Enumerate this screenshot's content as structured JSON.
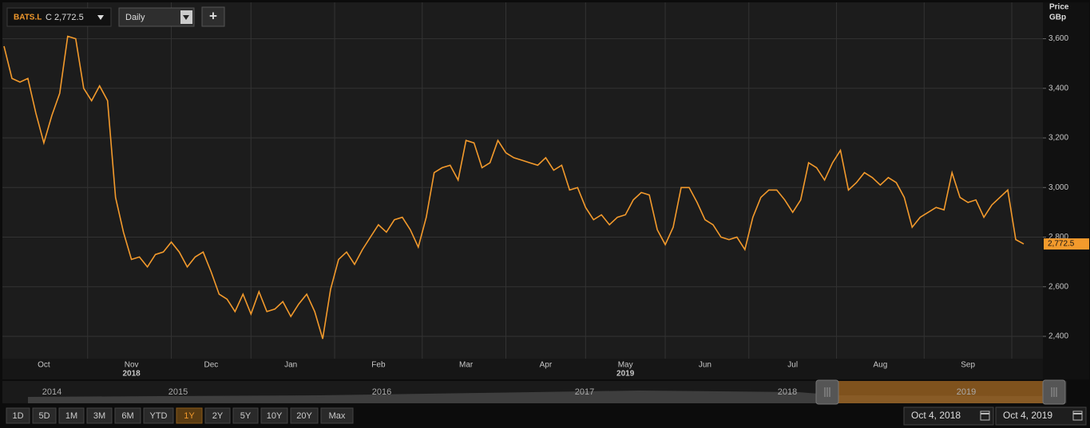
{
  "toolbar": {
    "symbol": "BATS.L",
    "quote": "C 2,772.5",
    "interval": "Daily",
    "add": "+"
  },
  "chart_data": {
    "type": "line",
    "axis_title": [
      "Price",
      "GBp"
    ],
    "categories": [
      null,
      null,
      null,
      null,
      null,
      "Oct",
      null,
      null,
      null,
      null,
      null,
      null,
      null,
      null,
      null,
      null,
      "Nov",
      null,
      null,
      null,
      null,
      null,
      null,
      null,
      null,
      null,
      "Dec",
      null,
      null,
      null,
      null,
      null,
      null,
      null,
      null,
      null,
      "Jan",
      null,
      null,
      null,
      null,
      null,
      null,
      null,
      null,
      null,
      null,
      "Feb",
      null,
      null,
      null,
      null,
      null,
      null,
      null,
      null,
      null,
      null,
      "Mar",
      null,
      null,
      null,
      null,
      null,
      null,
      null,
      null,
      null,
      "Apr",
      null,
      null,
      null,
      null,
      null,
      null,
      null,
      null,
      null,
      "May",
      null,
      null,
      null,
      null,
      null,
      null,
      null,
      null,
      null,
      "Jun",
      null,
      null,
      null,
      null,
      null,
      null,
      null,
      null,
      null,
      null,
      "Jul",
      null,
      null,
      null,
      null,
      null,
      null,
      null,
      null,
      null,
      null,
      "Aug",
      null,
      null,
      null,
      null,
      null,
      null,
      null,
      null,
      null,
      null,
      "Sep",
      null,
      null,
      null,
      null,
      null,
      null,
      null
    ],
    "category_years": [
      null,
      null,
      null,
      null,
      null,
      null,
      null,
      null,
      null,
      null,
      null,
      null,
      null,
      null,
      null,
      null,
      "2018",
      null,
      null,
      null,
      null,
      null,
      null,
      null,
      null,
      null,
      null,
      null,
      null,
      null,
      null,
      null,
      null,
      null,
      null,
      null,
      null,
      null,
      null,
      null,
      null,
      null,
      null,
      null,
      null,
      null,
      null,
      null,
      null,
      null,
      null,
      null,
      null,
      null,
      null,
      null,
      null,
      null,
      null,
      null,
      null,
      null,
      null,
      null,
      null,
      null,
      null,
      null,
      null,
      null,
      null,
      null,
      null,
      null,
      null,
      null,
      null,
      null,
      "2019",
      null,
      null,
      null,
      null,
      null,
      null,
      null,
      null,
      null,
      null,
      null,
      null,
      null,
      null,
      null,
      null,
      null,
      null,
      null,
      null,
      null,
      null,
      null,
      null,
      null,
      null,
      null,
      null,
      null,
      null,
      null,
      null,
      null,
      null,
      null,
      null,
      null,
      null,
      null,
      null,
      null,
      null,
      null,
      null,
      null,
      null,
      null,
      null,
      null,
      null,
      null,
      null,
      null,
      null,
      null
    ],
    "series": [
      {
        "name": "BATS.L",
        "color": "#f39a2c",
        "values": [
          3570,
          3440,
          3425,
          3440,
          3300,
          3180,
          3290,
          3380,
          3610,
          3600,
          3400,
          3350,
          3410,
          3350,
          2960,
          2820,
          2710,
          2720,
          2680,
          2730,
          2740,
          2780,
          2740,
          2680,
          2720,
          2740,
          2660,
          2570,
          2550,
          2500,
          2570,
          2490,
          2580,
          2500,
          2510,
          2540,
          2480,
          2530,
          2570,
          2500,
          2390,
          2590,
          2710,
          2740,
          2690,
          2750,
          2800,
          2850,
          2820,
          2870,
          2880,
          2830,
          2760,
          2880,
          3060,
          3080,
          3090,
          3030,
          3190,
          3180,
          3080,
          3100,
          3190,
          3140,
          3120,
          3110,
          3100,
          3090,
          3120,
          3070,
          3090,
          2990,
          3000,
          2920,
          2870,
          2890,
          2850,
          2880,
          2890,
          2950,
          2980,
          2970,
          2830,
          2770,
          2840,
          3000,
          3000,
          2940,
          2870,
          2850,
          2800,
          2790,
          2800,
          2750,
          2880,
          2960,
          2990,
          2990,
          2950,
          2900,
          2950,
          3100,
          3080,
          3030,
          3100,
          3150,
          2990,
          3020,
          3060,
          3040,
          3010,
          3040,
          3020,
          2960,
          2840,
          2880,
          2900,
          2920,
          2910,
          3060,
          2960,
          2940,
          2950,
          2880,
          2930,
          2960,
          2990,
          2790,
          2772.5
        ]
      }
    ],
    "last_price_label": "2,772.5",
    "ylim": [
      2310,
      3740
    ],
    "yticks": [
      {
        "value": 2400,
        "label": "2,400"
      },
      {
        "value": 2600,
        "label": "2,600"
      },
      {
        "value": 2800,
        "label": "2,800"
      },
      {
        "value": 3000,
        "label": "3,000"
      },
      {
        "value": 3200,
        "label": "3,200"
      },
      {
        "value": 3400,
        "label": "3,400"
      },
      {
        "value": 3600,
        "label": "3,600"
      }
    ],
    "grid": true
  },
  "navigator": {
    "years": [
      "2014",
      "2015",
      "2016",
      "2017",
      "2018",
      "2019"
    ]
  },
  "range_buttons": [
    "1D",
    "5D",
    "1M",
    "3M",
    "6M",
    "YTD",
    "1Y",
    "2Y",
    "5Y",
    "10Y",
    "20Y",
    "Max"
  ],
  "active_range_index": 6,
  "date_range": [
    "Oct 4, 2018",
    "Oct 4, 2019"
  ]
}
